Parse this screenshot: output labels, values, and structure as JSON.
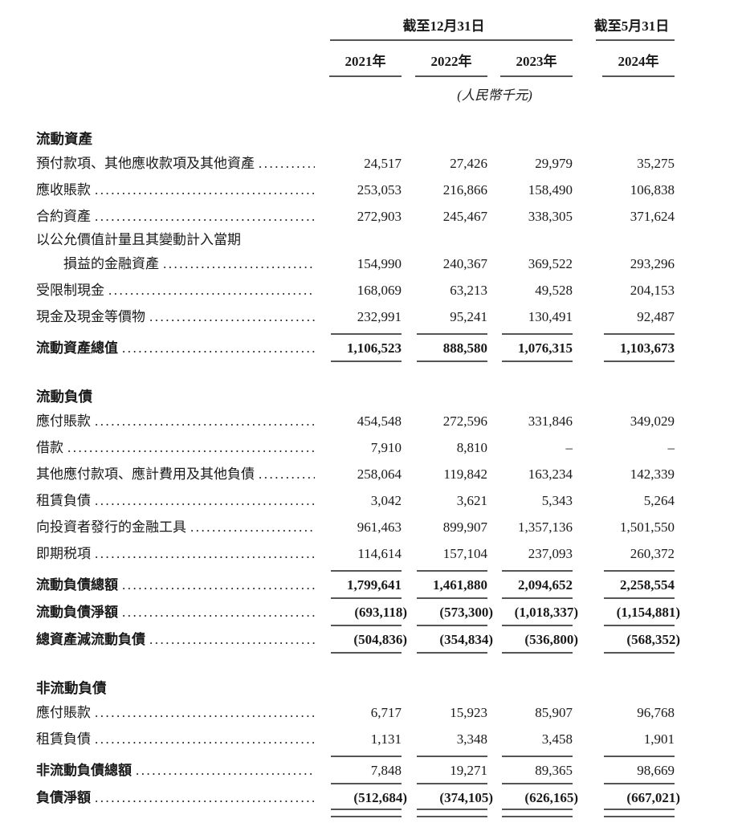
{
  "header": {
    "annual_group_label": "截至12月31日",
    "interim_group_label": "截至5月31日",
    "years": [
      "2021年",
      "2022年",
      "2023年",
      "2024年"
    ],
    "currency_note": "(人民幣千元)"
  },
  "colors": {
    "text": "#1a1a1a",
    "rule": "#555555",
    "background": "#ffffff"
  },
  "sections": [
    {
      "title": "流動資產",
      "rows": [
        {
          "label": "預付款項、其他應收款項及其他資產",
          "leader": true,
          "values": [
            "24,517",
            "27,426",
            "29,979",
            "35,275"
          ]
        },
        {
          "label": "應收賬款",
          "leader": true,
          "values": [
            "253,053",
            "216,866",
            "158,490",
            "106,838"
          ]
        },
        {
          "label": "合約資產",
          "leader": true,
          "values": [
            "272,903",
            "245,467",
            "338,305",
            "371,624"
          ]
        },
        {
          "label": "以公允價值計量且其變動計入當期",
          "leader": false,
          "cont": true,
          "values": null
        },
        {
          "label": "損益的金融資產",
          "indent": true,
          "leader": true,
          "values": [
            "154,990",
            "240,367",
            "369,522",
            "293,296"
          ]
        },
        {
          "label": "受限制現金",
          "leader": true,
          "values": [
            "168,069",
            "63,213",
            "49,528",
            "204,153"
          ]
        },
        {
          "label": "現金及現金等價物",
          "leader": true,
          "rule_below": "single",
          "values": [
            "232,991",
            "95,241",
            "130,491",
            "92,487"
          ]
        },
        {
          "label": "流動資產總值",
          "leader": true,
          "bold": true,
          "bold_values": true,
          "total": true,
          "rule_below": "single",
          "values": [
            "1,106,523",
            "888,580",
            "1,076,315",
            "1,103,673"
          ]
        }
      ]
    },
    {
      "title": "流動負債",
      "rows": [
        {
          "label": "應付賬款",
          "leader": true,
          "values": [
            "454,548",
            "272,596",
            "331,846",
            "349,029"
          ]
        },
        {
          "label": "借款",
          "leader": true,
          "values": [
            "7,910",
            "8,810",
            "–",
            "–"
          ]
        },
        {
          "label": "其他應付款項、應計費用及其他負債",
          "leader": true,
          "values": [
            "258,064",
            "119,842",
            "163,234",
            "142,339"
          ]
        },
        {
          "label": "租賃負債",
          "leader": true,
          "values": [
            "3,042",
            "3,621",
            "5,343",
            "5,264"
          ]
        },
        {
          "label": "向投資者發行的金融工具",
          "leader": true,
          "values": [
            "961,463",
            "899,907",
            "1,357,136",
            "1,501,550"
          ]
        },
        {
          "label": "即期税項",
          "leader": true,
          "rule_below": "single",
          "values": [
            "114,614",
            "157,104",
            "237,093",
            "260,372"
          ]
        },
        {
          "label": "流動負債總額",
          "leader": true,
          "bold": true,
          "bold_values": true,
          "total": true,
          "rule_below": "single",
          "values": [
            "1,799,641",
            "1,461,880",
            "2,094,652",
            "2,258,554"
          ]
        },
        {
          "label": "流動負債淨額",
          "leader": true,
          "bold": true,
          "bold_values": true,
          "total": true,
          "rule_below": "single",
          "values": [
            "(693,118)",
            "(573,300)",
            "(1,018,337)",
            "(1,154,881)"
          ]
        },
        {
          "label": "總資產減流動負債",
          "leader": true,
          "bold": true,
          "bold_values": true,
          "total": true,
          "rule_below": "single",
          "values": [
            "(504,836)",
            "(354,834)",
            "(536,800)",
            "(568,352)"
          ]
        }
      ]
    },
    {
      "title": "非流動負債",
      "rows": [
        {
          "label": "應付賬款",
          "leader": true,
          "values": [
            "6,717",
            "15,923",
            "85,907",
            "96,768"
          ]
        },
        {
          "label": "租賃負債",
          "leader": true,
          "rule_below": "single",
          "values": [
            "1,131",
            "3,348",
            "3,458",
            "1,901"
          ]
        },
        {
          "label": "非流動負債總額",
          "leader": true,
          "bold": true,
          "total": true,
          "rule_below": "single",
          "values": [
            "7,848",
            "19,271",
            "89,365",
            "98,669"
          ]
        },
        {
          "label": "負債淨額",
          "leader": true,
          "bold": true,
          "bold_values": true,
          "total": true,
          "rule_below": "double",
          "values": [
            "(512,684)",
            "(374,105)",
            "(626,165)",
            "(667,021)"
          ]
        }
      ]
    }
  ]
}
